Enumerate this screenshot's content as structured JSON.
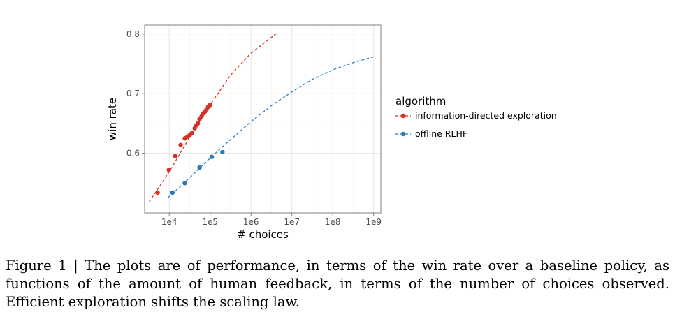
{
  "chart_data": {
    "type": "scatter",
    "xlabel": "# choices",
    "ylabel": "win rate",
    "xscale": "log10",
    "xlim": [
      2500,
      1500000000
    ],
    "ylim": [
      0.5,
      0.815
    ],
    "xticks": [
      10000,
      100000,
      1000000,
      10000000,
      100000000,
      1000000000
    ],
    "xtick_labels": [
      "1e4",
      "1e5",
      "1e6",
      "1e7",
      "1e8",
      "1e9"
    ],
    "yticks": [
      0.6,
      0.7,
      0.8
    ],
    "ytick_labels": [
      "0.6",
      "0.7",
      "0.8"
    ],
    "grid": true,
    "legend": {
      "title": "algorithm",
      "placement": "right"
    },
    "series": [
      {
        "name": "information-directed exploration",
        "color": "#d73027",
        "points": [
          [
            5200,
            0.534
          ],
          [
            9800,
            0.572
          ],
          [
            14000,
            0.595
          ],
          [
            19000,
            0.614
          ],
          [
            24000,
            0.625
          ],
          [
            28000,
            0.628
          ],
          [
            32000,
            0.631
          ],
          [
            36000,
            0.634
          ],
          [
            42000,
            0.642
          ],
          [
            46000,
            0.647
          ],
          [
            50000,
            0.65
          ],
          [
            55000,
            0.657
          ],
          [
            62000,
            0.662
          ],
          [
            68000,
            0.667
          ],
          [
            75000,
            0.67
          ],
          [
            82000,
            0.674
          ],
          [
            90000,
            0.678
          ],
          [
            100000,
            0.681
          ]
        ],
        "fit": [
          [
            3200,
            0.518
          ],
          [
            10000,
            0.569
          ],
          [
            31600,
            0.627
          ],
          [
            100000,
            0.681
          ],
          [
            316000,
            0.731
          ],
          [
            1000000,
            0.768
          ],
          [
            4200000,
            0.801
          ]
        ]
      },
      {
        "name": "offline RLHF",
        "color": "#2b7bba",
        "points": [
          [
            12000,
            0.534
          ],
          [
            24000,
            0.55
          ],
          [
            55000,
            0.576
          ],
          [
            110000,
            0.594
          ],
          [
            200000,
            0.602
          ]
        ],
        "fit": [
          [
            9500,
            0.526
          ],
          [
            31600,
            0.559
          ],
          [
            100000,
            0.592
          ],
          [
            316000,
            0.623
          ],
          [
            1000000,
            0.653
          ],
          [
            3160000,
            0.68
          ],
          [
            10000000,
            0.703
          ],
          [
            31600000,
            0.724
          ],
          [
            100000000,
            0.74
          ],
          [
            316000000,
            0.752
          ],
          [
            1000000000,
            0.762
          ]
        ]
      }
    ]
  },
  "caption": "Figure 1 | The plots are of performance, in terms of the win rate over a baseline policy, as functions of the amount of human feedback, in terms of the number of choices observed. Efficient exploration shifts the scaling law."
}
